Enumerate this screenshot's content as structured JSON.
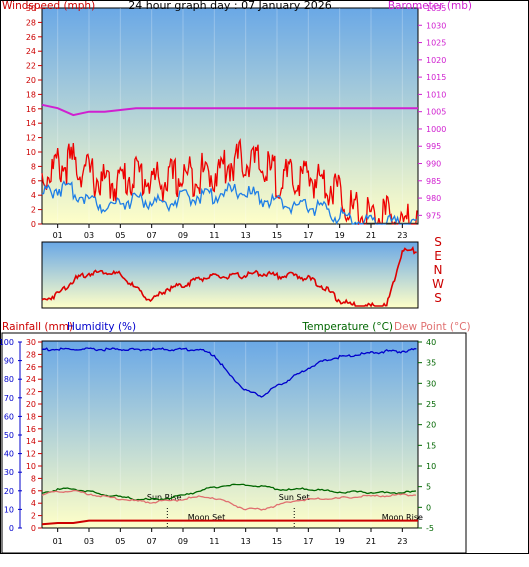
{
  "colors": {
    "wind": "#dd0000",
    "gust": "#ee0000",
    "avg_wind": "#1e7ee6",
    "barometer": "#d020d0",
    "rain_axis": "#cc0000",
    "humidity": "#0000cc",
    "temperature": "#006600",
    "dewpoint": "#e07070",
    "bg_top": "#6aa8e6",
    "bg_bottom": "#ffffc8"
  },
  "top_panel": {
    "title": "24 hour graph day : 07 January 2026",
    "left_axis_label": "Windspeed (mph)",
    "right_axis_label": "Barometer (mb)"
  },
  "direction_panel": {
    "compass_labels": [
      "S",
      "E",
      "N",
      "W",
      "S"
    ]
  },
  "bottom_panel": {
    "rainfall_label": "Rainfall (mm)",
    "humidity_label": "Humidity (%)",
    "temperature_label": "Temperature (°C)",
    "dewpoint_label": "Dew Point (°C)",
    "annotations": {
      "sun_rise": "Sun Rise",
      "sun_set": "Sun Set",
      "moon_set": "Moon Set",
      "moon_rise": "Moon Rise"
    }
  },
  "chart_data": [
    {
      "type": "line",
      "title": "24 hour graph day : 07 January 2026",
      "x": [
        0,
        1,
        2,
        3,
        4,
        5,
        6,
        7,
        8,
        9,
        10,
        11,
        12,
        13,
        14,
        15,
        16,
        17,
        18,
        19,
        20,
        21,
        22,
        23,
        24
      ],
      "xlim": [
        0,
        24
      ],
      "xtick_labels": [
        "01",
        "03",
        "05",
        "07",
        "09",
        "11",
        "13",
        "15",
        "17",
        "19",
        "21",
        "23"
      ],
      "ylabel": "Windspeed (mph)",
      "ylim": [
        0,
        30
      ],
      "yticks": [
        0,
        2,
        4,
        6,
        8,
        10,
        12,
        14,
        16,
        18,
        20,
        22,
        24,
        26,
        28,
        30
      ],
      "y2label": "Barometer (mb)",
      "y2lim": [
        972.5,
        1035
      ],
      "y2ticks": [
        975,
        980,
        985,
        990,
        995,
        1000,
        1005,
        1010,
        1015,
        1020,
        1025,
        1030,
        1035
      ],
      "series": [
        {
          "name": "Windspeed (mph)",
          "axis": "left",
          "values": [
            6.5,
            8,
            8.5,
            7,
            5.5,
            6,
            7,
            6,
            6,
            6.5,
            7,
            7,
            8.5,
            9,
            8,
            6.5,
            6,
            6.5,
            6,
            4.5,
            1.5,
            1,
            1,
            0,
            0
          ]
        },
        {
          "name": "Barometer (mb)",
          "axis": "right",
          "values": [
            1007,
            1006,
            1004,
            1005,
            1005,
            1005.5,
            1006,
            1006,
            1006,
            1006,
            1006,
            1006,
            1006,
            1006,
            1006,
            1006,
            1006,
            1006,
            1006,
            1006,
            1006,
            1006,
            1006,
            1006,
            1006
          ]
        },
        {
          "values": [
            4,
            5,
            4.5,
            3.5,
            2.5,
            3,
            3.5,
            3,
            3,
            3.5,
            4,
            4,
            4.5,
            4.5,
            3.5,
            3,
            2.5,
            2.5,
            2,
            1,
            0.5,
            0.3,
            0.2,
            0,
            0
          ]
        }
      ]
    },
    {
      "type": "line",
      "x": [
        0,
        1,
        2,
        3,
        4,
        5,
        6,
        7,
        8,
        9,
        10,
        11,
        12,
        13,
        14,
        15,
        16,
        17,
        18,
        19,
        20,
        21,
        22,
        23,
        24
      ],
      "xlim": [
        0,
        24
      ],
      "ylabels": [
        "S",
        "E",
        "N",
        "W",
        "S"
      ],
      "ylim": [
        0,
        360
      ],
      "series": [
        {
          "values": [
            30,
            70,
            150,
            190,
            200,
            180,
            100,
            30,
            100,
            120,
            160,
            170,
            170,
            180,
            190,
            175,
            180,
            160,
            110,
            30,
            0,
            0,
            0,
            320,
            320
          ]
        }
      ]
    },
    {
      "type": "line",
      "x": [
        0,
        1,
        2,
        3,
        4,
        5,
        6,
        7,
        8,
        9,
        10,
        11,
        12,
        13,
        14,
        15,
        16,
        17,
        18,
        19,
        20,
        21,
        22,
        23,
        24
      ],
      "xlim": [
        0,
        24
      ],
      "xtick_labels": [
        "01",
        "03",
        "05",
        "07",
        "09",
        "11",
        "13",
        "15",
        "17",
        "19",
        "21",
        "23"
      ],
      "y_rain_label": "Rainfall (mm)",
      "y_rain_lim": [
        0,
        30
      ],
      "y_rain_ticks": [
        0,
        2,
        4,
        6,
        8,
        10,
        12,
        14,
        16,
        18,
        20,
        22,
        24,
        26,
        28,
        30
      ],
      "y_humidity_label": "Humidity (%)",
      "y_humidity_lim": [
        0,
        100
      ],
      "y_humidity_ticks": [
        0,
        10,
        20,
        30,
        40,
        50,
        60,
        70,
        80,
        90,
        100
      ],
      "y_temp_label": "Temperature (°C)",
      "y_temp_lim": [
        -5,
        40
      ],
      "y_temp_ticks": [
        -5,
        0,
        5,
        10,
        15,
        20,
        25,
        30,
        35,
        40
      ],
      "y2label": "Dew Point (°C)",
      "series": [
        {
          "name": "Humidity (%)",
          "axis": "humidity",
          "values": [
            96,
            96,
            96,
            96,
            96,
            96,
            96,
            96,
            96,
            96,
            96,
            93,
            82,
            74,
            71,
            76,
            81,
            86,
            90,
            92,
            93,
            94,
            95,
            95,
            96
          ]
        },
        {
          "name": "Temperature (°C)",
          "axis": "temp",
          "values": [
            3.5,
            4.3,
            4.5,
            3.8,
            3,
            2.5,
            2,
            1.8,
            2.2,
            2.8,
            4,
            4.8,
            5.5,
            5.5,
            5,
            4.5,
            4.2,
            4.5,
            4,
            3.7,
            3.7,
            3.6,
            3.5,
            3.6,
            3.7
          ]
        },
        {
          "name": "Dew Point (°C)",
          "axis": "temp",
          "values": [
            3,
            3.8,
            3.9,
            3.3,
            2.5,
            2,
            1.5,
            1.3,
            1.5,
            2,
            2.5,
            2.3,
            1,
            -0.5,
            -0.5,
            0.5,
            1.5,
            2,
            2,
            2.2,
            2.5,
            2.7,
            2.8,
            3,
            3.2
          ]
        },
        {
          "name": "Rainfall (mm)",
          "axis": "rain",
          "values": [
            0.6,
            0.8,
            0.8,
            1.2,
            1.2,
            1.2,
            1.2,
            1.2,
            1.2,
            1.2,
            1.2,
            1.2,
            1.2,
            1.2,
            1.2,
            1.2,
            1.2,
            1.2,
            1.2,
            1.2,
            1.2,
            1.2,
            1.2,
            1.2,
            1.2
          ]
        }
      ]
    }
  ]
}
